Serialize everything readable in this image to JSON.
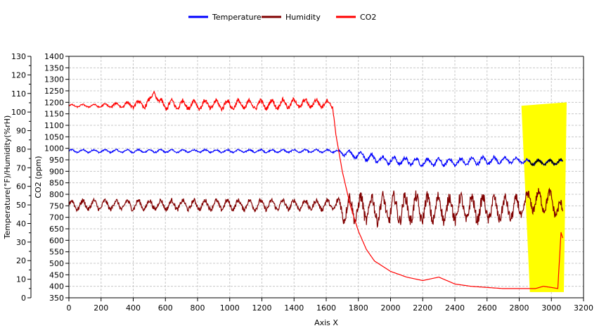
{
  "chart_data": {
    "type": "line",
    "title": "",
    "xlabel": "Axis X",
    "ylabel_left_outer": "Temperature(°F)/Humidity(%rH)",
    "ylabel_left_inner": "CO2 (ppm)",
    "xlim": [
      0,
      3200
    ],
    "x_ticks": [
      0,
      200,
      400,
      600,
      800,
      1000,
      1200,
      1400,
      1600,
      1800,
      2000,
      2200,
      2400,
      2600,
      2800,
      3000,
      3200
    ],
    "ylim_temp_hum": [
      0,
      130
    ],
    "y_ticks_temp_hum": [
      0,
      10,
      20,
      30,
      40,
      50,
      60,
      70,
      80,
      90,
      100,
      110,
      120,
      130
    ],
    "ylim_co2": [
      350,
      1400
    ],
    "y_ticks_co2": [
      350,
      400,
      450,
      500,
      550,
      600,
      650,
      700,
      750,
      800,
      850,
      900,
      950,
      1000,
      1050,
      1100,
      1150,
      1200,
      1250,
      1300,
      1350,
      1400
    ],
    "grid": true,
    "legend_position": "top-center",
    "legend": [
      {
        "name": "Temperature",
        "color": "#0000ff"
      },
      {
        "name": "Humidity",
        "color": "#800000"
      },
      {
        "name": "CO2",
        "color": "#ff0000"
      }
    ],
    "highlight_region": {
      "x_start": 2840,
      "x_end": 3060,
      "color": "#ffff00"
    },
    "series": [
      {
        "name": "Temperature",
        "color": "#0000ff",
        "axis": "left_outer",
        "x": [
          0,
          200,
          400,
          600,
          800,
          1000,
          1200,
          1400,
          1600,
          1650,
          1700,
          1800,
          1900,
          2000,
          2200,
          2400,
          2600,
          2800,
          2860,
          3000,
          3070
        ],
        "y": [
          79,
          79,
          79,
          79,
          79,
          79,
          79,
          79,
          79,
          79,
          78,
          77,
          75,
          74,
          73,
          73,
          74,
          74,
          73,
          73,
          73
        ],
        "amplitude": [
          1.2,
          1.2,
          1.2,
          1.2,
          1.2,
          1.2,
          1.2,
          1.2,
          1.2,
          1.2,
          2,
          3,
          3,
          3,
          3,
          3,
          3,
          2,
          2,
          2,
          2
        ]
      },
      {
        "name": "Humidity",
        "color": "#800000",
        "axis": "left_outer",
        "x": [
          0,
          200,
          400,
          600,
          800,
          1000,
          1200,
          1400,
          1600,
          1650,
          1700,
          1800,
          1900,
          2000,
          2200,
          2400,
          2600,
          2800,
          2860,
          3000,
          3070
        ],
        "y": [
          50,
          50,
          50,
          50,
          50,
          50,
          50,
          50,
          50,
          50,
          48,
          48,
          48,
          48,
          48,
          48,
          48,
          48,
          52,
          52,
          45
        ],
        "amplitude": [
          4,
          4,
          4,
          4,
          4,
          4,
          4,
          4,
          4,
          4,
          10,
          11,
          11,
          11,
          11,
          11,
          10,
          9,
          8,
          8,
          8
        ]
      },
      {
        "name": "CO2",
        "color": "#ff0000",
        "axis": "left_inner",
        "x": [
          0,
          200,
          400,
          500,
          530,
          560,
          600,
          800,
          1000,
          1200,
          1400,
          1600,
          1640,
          1660,
          1700,
          1750,
          1800,
          1850,
          1900,
          2000,
          2100,
          2200,
          2300,
          2400,
          2500,
          2600,
          2700,
          2800,
          2900,
          2950,
          3000,
          3040,
          3060,
          3070
        ],
        "y": [
          1185,
          1185,
          1190,
          1195,
          1250,
          1195,
          1190,
          1190,
          1190,
          1190,
          1195,
          1195,
          1190,
          1060,
          900,
          750,
          640,
          560,
          510,
          465,
          440,
          425,
          440,
          410,
          400,
          395,
          390,
          390,
          390,
          400,
          395,
          390,
          635,
          610
        ],
        "amplitude": [
          8,
          10,
          20,
          30,
          5,
          30,
          30,
          30,
          30,
          30,
          30,
          25,
          20,
          0,
          0,
          0,
          0,
          0,
          0,
          0,
          0,
          0,
          0,
          0,
          0,
          0,
          0,
          0,
          0,
          0,
          0,
          0,
          0,
          0
        ]
      }
    ]
  }
}
